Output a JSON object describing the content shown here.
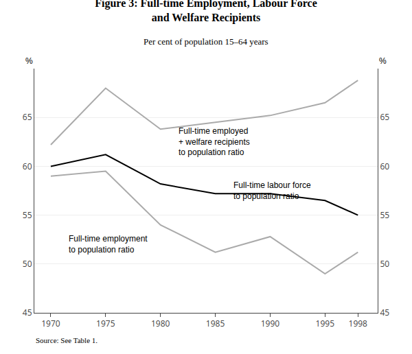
{
  "chart_data": {
    "type": "line",
    "title": "Figure 3: Full-time Employment, Labour Force\nand Welfare Recipients",
    "subtitle": "Per cent of population 15–64 years",
    "source": "Source: See Table 1.",
    "x": [
      1970,
      1975,
      1980,
      1985,
      1990,
      1995,
      1998
    ],
    "xlim": [
      1968.5,
      1999.8
    ],
    "xticks": [
      1970,
      1975,
      1980,
      1985,
      1990,
      1995,
      1998
    ],
    "ylim": [
      45,
      70
    ],
    "yticks": [
      45,
      50,
      55,
      60,
      65
    ],
    "y2lim": [
      45,
      70
    ],
    "y2ticks": [
      45,
      50,
      55,
      60,
      65
    ],
    "ylabel": "%",
    "y2label": "%",
    "grid": true,
    "series": [
      {
        "name": "Full-time employment\nto population ratio",
        "color": "#aaaaaa",
        "values": [
          59.0,
          59.5,
          54.0,
          51.2,
          52.8,
          49.0,
          51.2
        ]
      },
      {
        "name": "Full-time labour force\nto population ratio",
        "color": "#000000",
        "values": [
          60.0,
          61.2,
          58.2,
          57.2,
          57.2,
          56.5,
          55.0
        ]
      },
      {
        "name": "Full-time employed\n+ welfare recipients\nto population ratio",
        "color": "#aaaaaa",
        "values": [
          62.2,
          68.0,
          63.8,
          64.5,
          65.2,
          66.5,
          68.8
        ]
      }
    ],
    "annotations": [
      {
        "text": "Full-time employment\nto population ratio",
        "x": 1971.5,
        "y": 52.0
      },
      {
        "text": "Full-time labour force\nto population ratio",
        "x": 1986.5,
        "y": 57.5
      },
      {
        "text": "Full-time employed\n+ welfare recipients\nto population ratio",
        "x": 1981.5,
        "y": 62.5
      }
    ]
  }
}
